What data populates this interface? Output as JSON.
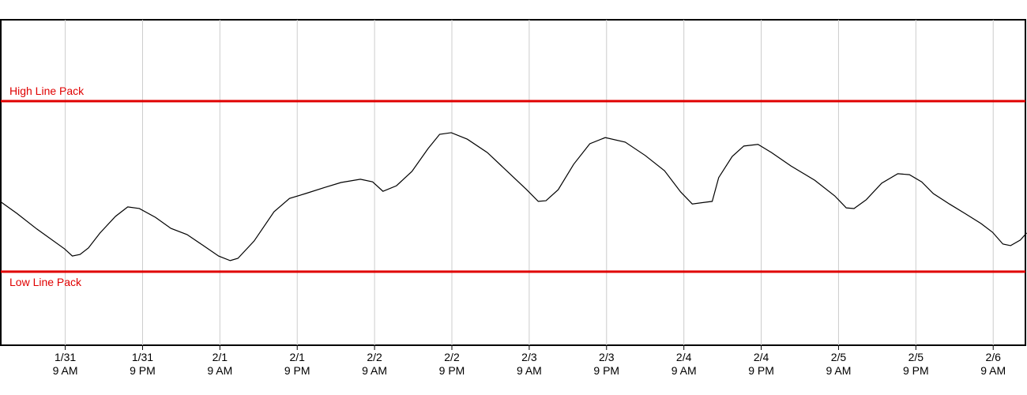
{
  "chart_data": {
    "type": "line",
    "x": [
      -9.9,
      -7.5,
      -4.4,
      -0.1,
      1.1,
      2.3,
      3.6,
      5.4,
      7.8,
      9.7,
      11.5,
      14.0,
      16.4,
      18.9,
      21.3,
      23.8,
      25.6,
      26.8,
      29.3,
      32.4,
      34.8,
      37.3,
      40.3,
      42.8,
      45.8,
      47.7,
      49.3,
      51.4,
      53.8,
      56.3,
      58.1,
      59.9,
      62.4,
      65.5,
      68.5,
      71.6,
      73.4,
      74.6,
      76.5,
      78.9,
      81.4,
      83.8,
      86.9,
      90.0,
      93.0,
      95.5,
      97.3,
      100.4,
      101.4,
      103.5,
      105.3,
      107.5,
      109.6,
      112.6,
      116.3,
      119.4,
      121.2,
      122.4,
      124.3,
      126.7,
      129.2,
      131.0,
      132.9,
      134.7,
      137.2,
      139.6,
      142.1,
      143.9,
      145.5,
      146.7,
      148.2,
      149.2
    ],
    "series": [
      {
        "color": "#000000",
        "values": [
          43.9,
          40.5,
          35.7,
          29.6,
          27.4,
          27.9,
          29.9,
          34.5,
          39.6,
          42.5,
          42.0,
          39.3,
          35.9,
          34.0,
          30.8,
          27.4,
          26.0,
          26.7,
          32.0,
          41.0,
          45.1,
          46.6,
          48.5,
          50.0,
          51.0,
          50.2,
          47.3,
          49.0,
          53.4,
          60.4,
          64.8,
          65.3,
          63.3,
          59.2,
          53.6,
          47.8,
          44.2,
          44.4,
          47.8,
          55.6,
          61.9,
          63.8,
          62.4,
          58.3,
          53.6,
          47.1,
          43.4,
          44.2,
          51.5,
          58.0,
          61.2,
          61.7,
          59.2,
          55.1,
          50.7,
          45.9,
          42.2,
          42.0,
          44.7,
          49.8,
          52.7,
          52.4,
          50.2,
          46.6,
          43.4,
          40.5,
          37.4,
          34.7,
          31.1,
          30.6,
          32.3,
          34.5
        ]
      }
    ],
    "reference_lines": [
      {
        "label": "High Line Pack",
        "value": 75,
        "color": "#e00000"
      },
      {
        "label": "Low Line Pack",
        "value": 22.6,
        "color": "#e00000"
      }
    ],
    "xlim": [
      -10,
      149
    ],
    "xticks": [
      {
        "value": 0,
        "label": [
          "1/31",
          "9 AM"
        ]
      },
      {
        "value": 12,
        "label": [
          "1/31",
          "9 PM"
        ]
      },
      {
        "value": 24,
        "label": [
          "2/1",
          "9 AM"
        ]
      },
      {
        "value": 36,
        "label": [
          "2/1",
          "9 PM"
        ]
      },
      {
        "value": 48,
        "label": [
          "2/2",
          "9 AM"
        ]
      },
      {
        "value": 60,
        "label": [
          "2/2",
          "9 PM"
        ]
      },
      {
        "value": 72,
        "label": [
          "2/3",
          "9 AM"
        ]
      },
      {
        "value": 84,
        "label": [
          "2/3",
          "9 PM"
        ]
      },
      {
        "value": 96,
        "label": [
          "2/4",
          "9 AM"
        ]
      },
      {
        "value": 108,
        "label": [
          "2/4",
          "9 PM"
        ]
      },
      {
        "value": 120,
        "label": [
          "2/5",
          "9 AM"
        ]
      },
      {
        "value": 132,
        "label": [
          "2/5",
          "9 PM"
        ]
      },
      {
        "value": 144,
        "label": [
          "2/6",
          "9 AM"
        ]
      }
    ],
    "ylim": [
      0,
      100
    ],
    "grid": true
  }
}
